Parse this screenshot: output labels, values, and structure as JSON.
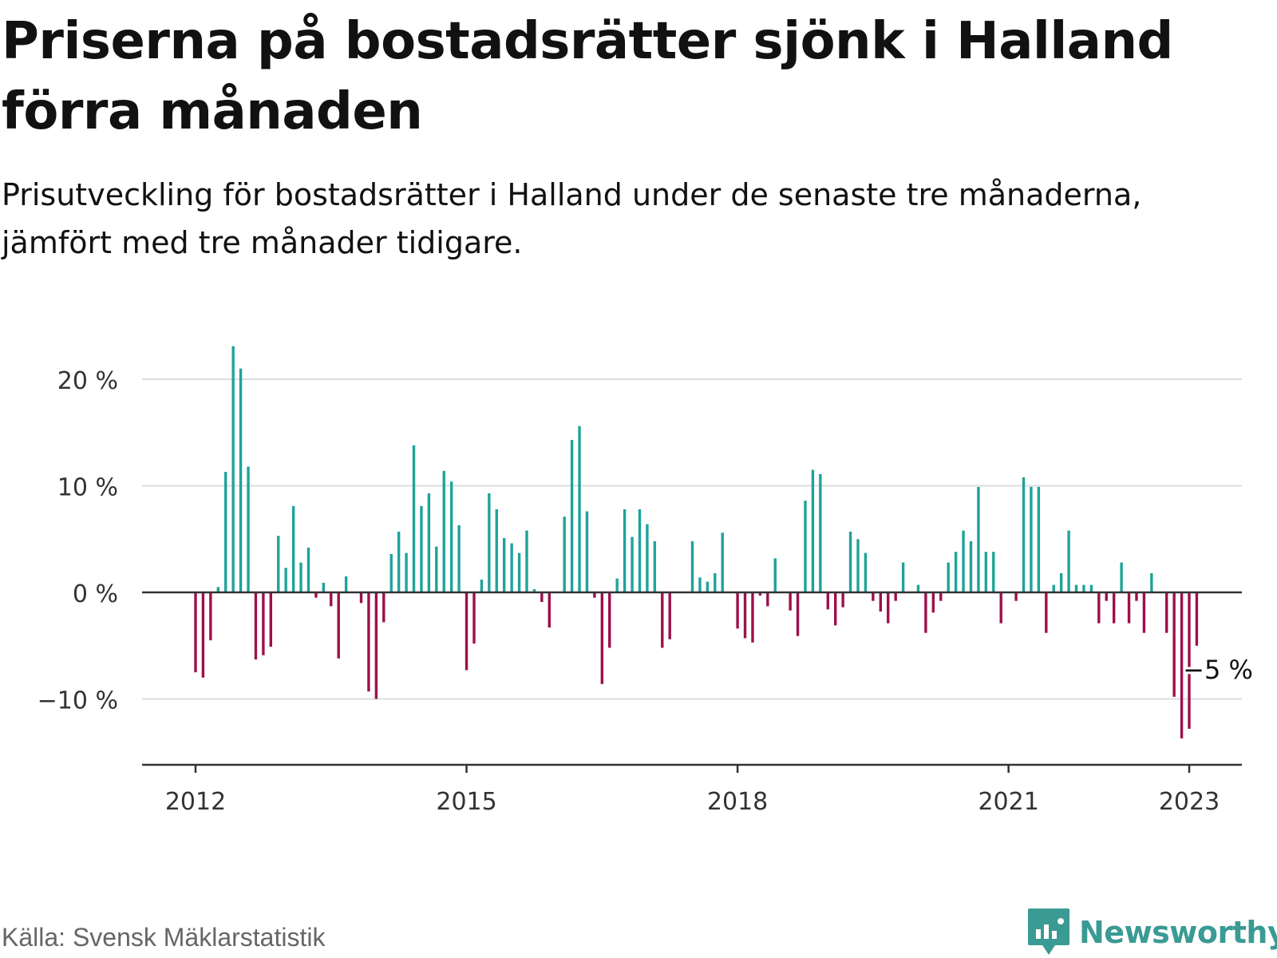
{
  "title": "Priserna på bostadsrätter sjönk i Halland förra månaden",
  "subtitle": "Prisutveckling för bostadsrätter i Halland under de senaste tre månaderna, jämfört med tre månader tidigare.",
  "source": "Källa: Svensk Mäklarstatistik",
  "brand": {
    "name": "Newsworthy",
    "icon": "newsworthy-logo-icon"
  },
  "colors": {
    "positive": "#1fa39a",
    "negative": "#9e0f4b",
    "brand": "#3a9a94",
    "gridline": "#dddddd",
    "axis": "#333333",
    "label": "#333333"
  },
  "chart_data": {
    "type": "bar",
    "title": "Priserna på bostadsrätter sjönk i Halland förra månaden",
    "subtitle": "Prisutveckling för bostadsrätter i Halland under de senaste tre månaderna, jämfört med tre månader tidigare.",
    "xlabel": "",
    "ylabel": "",
    "unit": "%",
    "x_start": "2012-01",
    "x_end": "2023-01",
    "x_ticks": [
      {
        "date": "2012-01",
        "label": "2012"
      },
      {
        "date": "2015-01",
        "label": "2015"
      },
      {
        "date": "2018-01",
        "label": "2018"
      },
      {
        "date": "2021-01",
        "label": "2021"
      },
      {
        "date": "2023-01",
        "label": "2023"
      }
    ],
    "y_ticks": [
      {
        "value": 20,
        "label": "20 %"
      },
      {
        "value": 10,
        "label": "10 %"
      },
      {
        "value": 0,
        "label": "0 %"
      },
      {
        "value": -10,
        "label": "−10 %"
      }
    ],
    "ylim": [
      -16,
      24
    ],
    "grid": true,
    "legend": "none",
    "annotation": {
      "date": "2023-01",
      "value": -5,
      "label": "−5 %"
    },
    "series": [
      {
        "values": [
          {
            "date": "2012-01",
            "value": -7.5
          },
          {
            "date": "2012-02",
            "value": -8.0
          },
          {
            "date": "2012-03",
            "value": -4.5
          },
          {
            "date": "2012-04",
            "value": 0.5
          },
          {
            "date": "2012-05",
            "value": 11.3
          },
          {
            "date": "2012-06",
            "value": 23.1
          },
          {
            "date": "2012-07",
            "value": 21.0
          },
          {
            "date": "2012-08",
            "value": 11.8
          },
          {
            "date": "2012-09",
            "value": -6.3
          },
          {
            "date": "2012-10",
            "value": -5.9
          },
          {
            "date": "2012-11",
            "value": -5.1
          },
          {
            "date": "2012-12",
            "value": 5.3
          },
          {
            "date": "2013-01",
            "value": 2.3
          },
          {
            "date": "2013-02",
            "value": 8.1
          },
          {
            "date": "2013-03",
            "value": 2.8
          },
          {
            "date": "2013-04",
            "value": 4.2
          },
          {
            "date": "2013-05",
            "value": -0.5
          },
          {
            "date": "2013-06",
            "value": 0.9
          },
          {
            "date": "2013-07",
            "value": -1.3
          },
          {
            "date": "2013-08",
            "value": -6.2
          },
          {
            "date": "2013-09",
            "value": 1.5
          },
          {
            "date": "2013-10",
            "value": 0.0
          },
          {
            "date": "2013-11",
            "value": -1.0
          },
          {
            "date": "2013-12",
            "value": -9.3
          },
          {
            "date": "2014-01",
            "value": -10.0
          },
          {
            "date": "2014-02",
            "value": -2.8
          },
          {
            "date": "2014-03",
            "value": 3.6
          },
          {
            "date": "2014-04",
            "value": 5.7
          },
          {
            "date": "2014-05",
            "value": 3.7
          },
          {
            "date": "2014-06",
            "value": 13.8
          },
          {
            "date": "2014-07",
            "value": 8.1
          },
          {
            "date": "2014-08",
            "value": 9.3
          },
          {
            "date": "2014-09",
            "value": 4.3
          },
          {
            "date": "2014-10",
            "value": 11.4
          },
          {
            "date": "2014-11",
            "value": 10.4
          },
          {
            "date": "2014-12",
            "value": 6.3
          },
          {
            "date": "2015-01",
            "value": -7.3
          },
          {
            "date": "2015-02",
            "value": -4.8
          },
          {
            "date": "2015-03",
            "value": 1.2
          },
          {
            "date": "2015-04",
            "value": 9.3
          },
          {
            "date": "2015-05",
            "value": 7.8
          },
          {
            "date": "2015-06",
            "value": 5.1
          },
          {
            "date": "2015-07",
            "value": 4.6
          },
          {
            "date": "2015-08",
            "value": 3.7
          },
          {
            "date": "2015-09",
            "value": 5.8
          },
          {
            "date": "2015-10",
            "value": 0.3
          },
          {
            "date": "2015-11",
            "value": -0.9
          },
          {
            "date": "2015-12",
            "value": -3.3
          },
          {
            "date": "2016-01",
            "value": 0.0
          },
          {
            "date": "2016-02",
            "value": 7.1
          },
          {
            "date": "2016-03",
            "value": 14.3
          },
          {
            "date": "2016-04",
            "value": 15.6
          },
          {
            "date": "2016-05",
            "value": 7.6
          },
          {
            "date": "2016-06",
            "value": -0.5
          },
          {
            "date": "2016-07",
            "value": -8.6
          },
          {
            "date": "2016-08",
            "value": -5.2
          },
          {
            "date": "2016-09",
            "value": 1.3
          },
          {
            "date": "2016-10",
            "value": 7.8
          },
          {
            "date": "2016-11",
            "value": 5.2
          },
          {
            "date": "2016-12",
            "value": 7.8
          },
          {
            "date": "2017-01",
            "value": 6.4
          },
          {
            "date": "2017-02",
            "value": 4.8
          },
          {
            "date": "2017-03",
            "value": -5.2
          },
          {
            "date": "2017-04",
            "value": -4.4
          },
          {
            "date": "2017-05",
            "value": 0.0
          },
          {
            "date": "2017-06",
            "value": 0.0
          },
          {
            "date": "2017-07",
            "value": 4.8
          },
          {
            "date": "2017-08",
            "value": 1.4
          },
          {
            "date": "2017-09",
            "value": 1.0
          },
          {
            "date": "2017-10",
            "value": 1.8
          },
          {
            "date": "2017-11",
            "value": 5.6
          },
          {
            "date": "2017-12",
            "value": 0.0
          },
          {
            "date": "2018-01",
            "value": -3.4
          },
          {
            "date": "2018-02",
            "value": -4.3
          },
          {
            "date": "2018-03",
            "value": -4.7
          },
          {
            "date": "2018-04",
            "value": -0.3
          },
          {
            "date": "2018-05",
            "value": -1.3
          },
          {
            "date": "2018-06",
            "value": 3.2
          },
          {
            "date": "2018-07",
            "value": 0.0
          },
          {
            "date": "2018-08",
            "value": -1.7
          },
          {
            "date": "2018-09",
            "value": -4.1
          },
          {
            "date": "2018-10",
            "value": 8.6
          },
          {
            "date": "2018-11",
            "value": 11.5
          },
          {
            "date": "2018-12",
            "value": 11.1
          },
          {
            "date": "2019-01",
            "value": -1.6
          },
          {
            "date": "2019-02",
            "value": -3.1
          },
          {
            "date": "2019-03",
            "value": -1.4
          },
          {
            "date": "2019-04",
            "value": 5.7
          },
          {
            "date": "2019-05",
            "value": 5.0
          },
          {
            "date": "2019-06",
            "value": 3.7
          },
          {
            "date": "2019-07",
            "value": -0.8
          },
          {
            "date": "2019-08",
            "value": -1.8
          },
          {
            "date": "2019-09",
            "value": -2.9
          },
          {
            "date": "2019-10",
            "value": -0.8
          },
          {
            "date": "2019-11",
            "value": 2.8
          },
          {
            "date": "2019-12",
            "value": 0.0
          },
          {
            "date": "2020-01",
            "value": 0.7
          },
          {
            "date": "2020-02",
            "value": -3.8
          },
          {
            "date": "2020-03",
            "value": -1.9
          },
          {
            "date": "2020-04",
            "value": -0.8
          },
          {
            "date": "2020-05",
            "value": 2.8
          },
          {
            "date": "2020-06",
            "value": 3.8
          },
          {
            "date": "2020-07",
            "value": 5.8
          },
          {
            "date": "2020-08",
            "value": 4.8
          },
          {
            "date": "2020-09",
            "value": 9.9
          },
          {
            "date": "2020-10",
            "value": 3.8
          },
          {
            "date": "2020-11",
            "value": 3.8
          },
          {
            "date": "2020-12",
            "value": -2.9
          },
          {
            "date": "2021-01",
            "value": 0.0
          },
          {
            "date": "2021-02",
            "value": -0.8
          },
          {
            "date": "2021-03",
            "value": 10.8
          },
          {
            "date": "2021-04",
            "value": 9.9
          },
          {
            "date": "2021-05",
            "value": 9.9
          },
          {
            "date": "2021-06",
            "value": -3.8
          },
          {
            "date": "2021-07",
            "value": 0.7
          },
          {
            "date": "2021-08",
            "value": 1.8
          },
          {
            "date": "2021-09",
            "value": 5.8
          },
          {
            "date": "2021-10",
            "value": 0.7
          },
          {
            "date": "2021-11",
            "value": 0.7
          },
          {
            "date": "2021-12",
            "value": 0.7
          },
          {
            "date": "2022-01",
            "value": -2.9
          },
          {
            "date": "2022-02",
            "value": -0.8
          },
          {
            "date": "2022-03",
            "value": -2.9
          },
          {
            "date": "2022-04",
            "value": 2.8
          },
          {
            "date": "2022-05",
            "value": -2.9
          },
          {
            "date": "2022-06",
            "value": -0.8
          },
          {
            "date": "2022-07",
            "value": -3.8
          },
          {
            "date": "2022-08",
            "value": 1.8
          },
          {
            "date": "2022-09",
            "value": 0.0
          },
          {
            "date": "2022-10",
            "value": -3.8
          },
          {
            "date": "2022-11",
            "value": -9.8
          },
          {
            "date": "2022-12",
            "value": -13.7
          },
          {
            "date": "2023-01",
            "value": -12.8
          },
          {
            "date": "2023-02",
            "value": -5.0
          }
        ]
      }
    ]
  }
}
